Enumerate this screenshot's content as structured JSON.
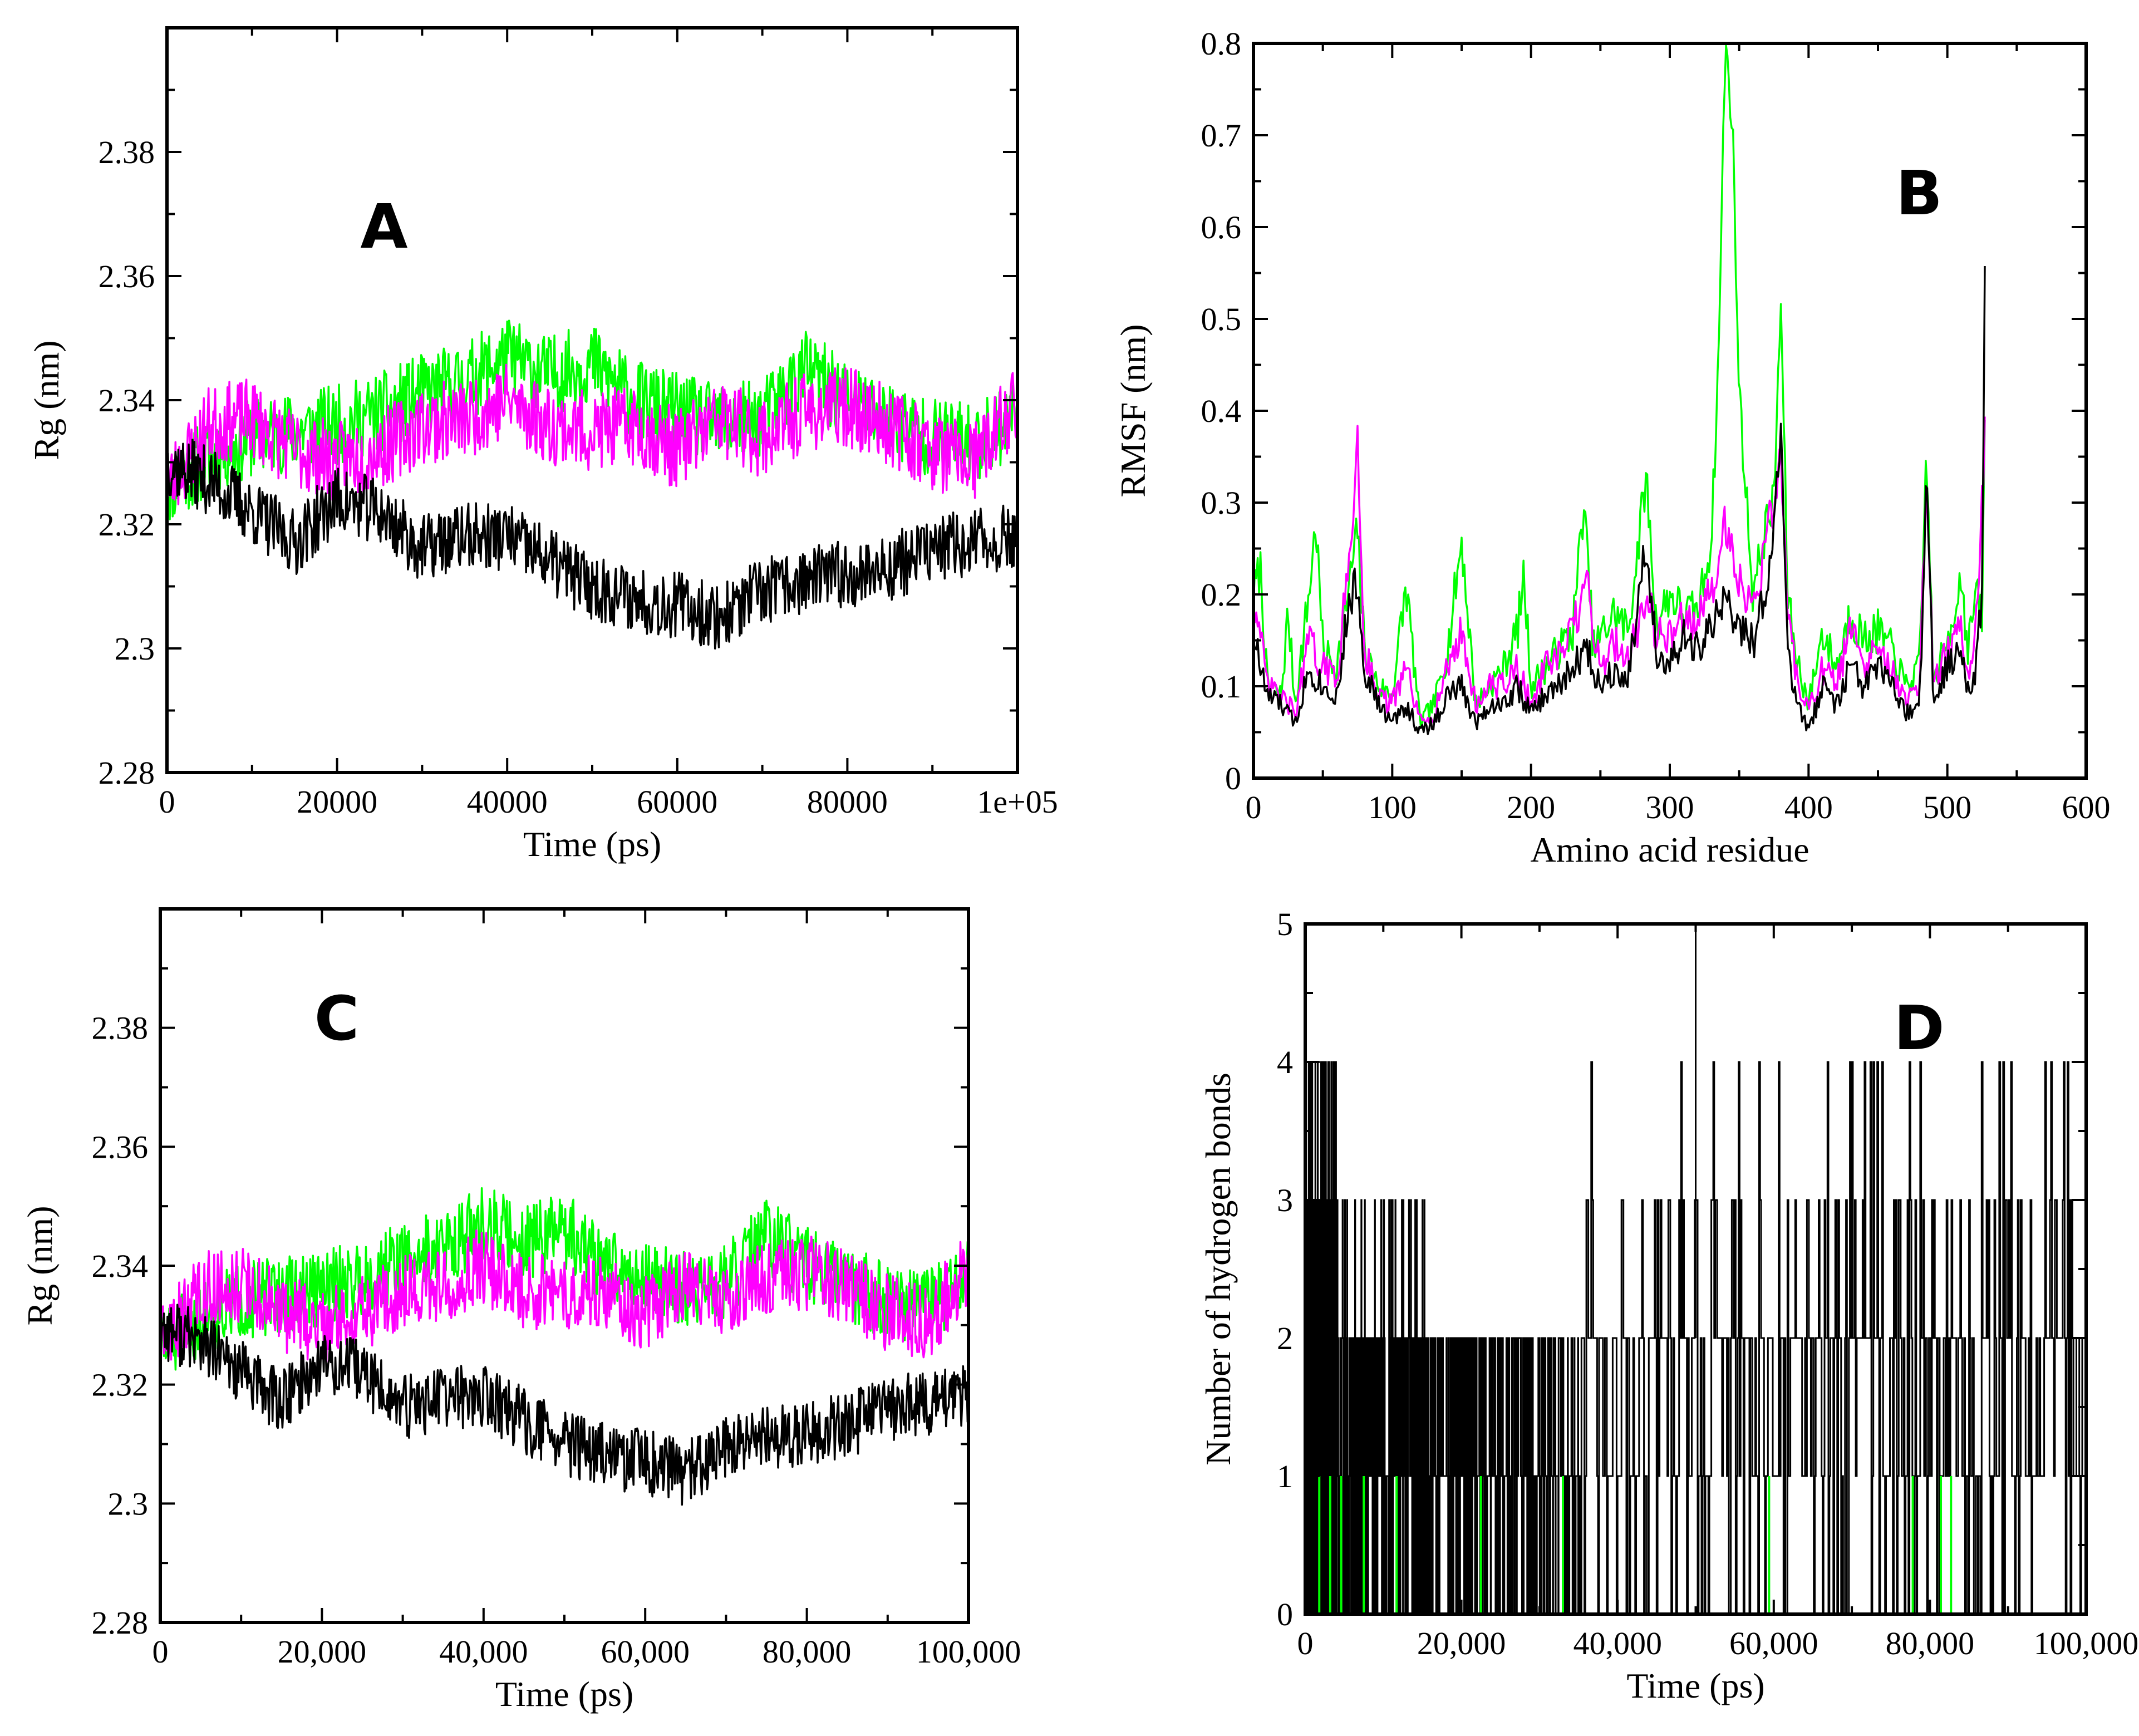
{
  "colors": {
    "black": "#000000",
    "green": "#00ff00",
    "magenta": "#ff00ff"
  },
  "chart_data": [
    {
      "id": "A",
      "type": "line",
      "panel_label": "A",
      "xlabel": "Time (ps)",
      "ylabel": "Rg (nm)",
      "xlim": [
        0,
        100000
      ],
      "ylim": [
        2.28,
        2.4
      ],
      "xticks": [
        0,
        20000,
        40000,
        60000,
        80000,
        100000
      ],
      "xtick_labels": [
        "0",
        "20000",
        "40000",
        "60000",
        "80000",
        "1e+05"
      ],
      "yticks": [
        2.28,
        2.3,
        2.32,
        2.34,
        2.36,
        2.38
      ],
      "ytick_labels": [
        "2.28",
        "2.3",
        "2.32",
        "2.34",
        "2.36",
        "2.38"
      ],
      "series": [
        {
          "name": "green",
          "color": "#00ff00",
          "noise": 0.0065,
          "seed": 11,
          "x": [
            0,
            5000,
            10000,
            15000,
            20000,
            25000,
            30000,
            35000,
            40000,
            45000,
            50000,
            55000,
            60000,
            65000,
            70000,
            75000,
            80000,
            85000,
            90000,
            95000,
            100000
          ],
          "y": [
            2.326,
            2.331,
            2.334,
            2.335,
            2.336,
            2.338,
            2.341,
            2.343,
            2.347,
            2.344,
            2.346,
            2.34,
            2.338,
            2.336,
            2.337,
            2.345,
            2.34,
            2.337,
            2.334,
            2.333,
            2.338
          ]
        },
        {
          "name": "magenta",
          "color": "#ff00ff",
          "noise": 0.0065,
          "seed": 23,
          "x": [
            0,
            5000,
            10000,
            15000,
            20000,
            25000,
            30000,
            35000,
            40000,
            45000,
            50000,
            55000,
            60000,
            65000,
            70000,
            75000,
            80000,
            85000,
            90000,
            95000,
            100000
          ],
          "y": [
            2.326,
            2.336,
            2.337,
            2.332,
            2.33,
            2.332,
            2.336,
            2.337,
            2.34,
            2.336,
            2.335,
            2.336,
            2.332,
            2.337,
            2.334,
            2.338,
            2.339,
            2.336,
            2.332,
            2.33,
            2.34
          ]
        },
        {
          "name": "black",
          "color": "#000000",
          "noise": 0.0055,
          "seed": 37,
          "x": [
            0,
            5000,
            10000,
            15000,
            20000,
            25000,
            30000,
            35000,
            40000,
            45000,
            50000,
            55000,
            60000,
            65000,
            70000,
            75000,
            80000,
            85000,
            90000,
            95000,
            100000
          ],
          "y": [
            2.33,
            2.327,
            2.322,
            2.317,
            2.324,
            2.322,
            2.316,
            2.318,
            2.318,
            2.314,
            2.31,
            2.308,
            2.307,
            2.305,
            2.309,
            2.311,
            2.312,
            2.313,
            2.316,
            2.317,
            2.318
          ]
        }
      ]
    },
    {
      "id": "B",
      "type": "line",
      "panel_label": "B",
      "xlabel": "Amino acid residue",
      "ylabel": "RMSF (nm)",
      "xlim": [
        0,
        600
      ],
      "ylim": [
        0,
        0.8
      ],
      "xticks": [
        0,
        100,
        200,
        300,
        400,
        500,
        600
      ],
      "xtick_labels": [
        "0",
        "100",
        "200",
        "300",
        "400",
        "500",
        "600"
      ],
      "yticks": [
        0,
        0.1,
        0.2,
        0.3,
        0.4,
        0.5,
        0.6,
        0.7,
        0.8
      ],
      "ytick_labels": [
        "0",
        "0.1",
        "0.2",
        "0.3",
        "0.4",
        "0.5",
        "0.6",
        "0.7",
        "0.8"
      ],
      "series": [
        {
          "name": "green",
          "color": "#00ff00",
          "x": [
            0,
            5,
            10,
            20,
            25,
            30,
            40,
            45,
            50,
            60,
            70,
            75,
            80,
            90,
            100,
            110,
            120,
            130,
            140,
            150,
            160,
            170,
            180,
            190,
            195,
            200,
            210,
            220,
            230,
            238,
            245,
            260,
            270,
            283,
            290,
            300,
            310,
            320,
            330,
            335,
            340,
            345,
            350,
            360,
            370,
            375,
            380,
            385,
            390,
            400,
            410,
            420,
            430,
            440,
            450,
            460,
            470,
            480,
            485,
            490,
            500,
            510,
            515,
            520,
            525,
            527
          ],
          "y": [
            0.2,
            0.23,
            0.1,
            0.09,
            0.18,
            0.08,
            0.2,
            0.28,
            0.14,
            0.12,
            0.22,
            0.27,
            0.14,
            0.1,
            0.09,
            0.21,
            0.06,
            0.08,
            0.14,
            0.26,
            0.08,
            0.1,
            0.12,
            0.16,
            0.22,
            0.1,
            0.12,
            0.14,
            0.16,
            0.3,
            0.14,
            0.18,
            0.16,
            0.33,
            0.17,
            0.2,
            0.18,
            0.18,
            0.26,
            0.45,
            0.8,
            0.72,
            0.42,
            0.2,
            0.28,
            0.3,
            0.52,
            0.2,
            0.14,
            0.08,
            0.16,
            0.12,
            0.18,
            0.15,
            0.16,
            0.14,
            0.1,
            0.12,
            0.36,
            0.1,
            0.15,
            0.22,
            0.14,
            0.2,
            0.18,
            0.38
          ]
        },
        {
          "name": "magenta",
          "color": "#ff00ff",
          "x": [
            0,
            5,
            10,
            20,
            30,
            40,
            50,
            60,
            70,
            75,
            80,
            90,
            100,
            110,
            120,
            130,
            140,
            150,
            160,
            170,
            180,
            190,
            200,
            210,
            220,
            230,
            240,
            250,
            260,
            270,
            283,
            290,
            300,
            310,
            320,
            330,
            340,
            350,
            360,
            370,
            380,
            385,
            390,
            400,
            410,
            420,
            430,
            440,
            450,
            460,
            470,
            480,
            485,
            490,
            500,
            510,
            515,
            520,
            525,
            527
          ],
          "y": [
            0.2,
            0.15,
            0.1,
            0.09,
            0.07,
            0.15,
            0.12,
            0.11,
            0.25,
            0.37,
            0.14,
            0.09,
            0.08,
            0.12,
            0.06,
            0.07,
            0.12,
            0.16,
            0.08,
            0.1,
            0.1,
            0.12,
            0.08,
            0.12,
            0.13,
            0.16,
            0.21,
            0.12,
            0.15,
            0.13,
            0.2,
            0.16,
            0.15,
            0.18,
            0.17,
            0.2,
            0.28,
            0.22,
            0.18,
            0.26,
            0.35,
            0.18,
            0.12,
            0.07,
            0.12,
            0.1,
            0.16,
            0.12,
            0.14,
            0.12,
            0.08,
            0.1,
            0.32,
            0.1,
            0.14,
            0.16,
            0.12,
            0.15,
            0.3,
            0.38
          ]
        },
        {
          "name": "black",
          "color": "#000000",
          "x": [
            0,
            5,
            10,
            20,
            30,
            40,
            50,
            60,
            70,
            75,
            80,
            90,
            100,
            110,
            120,
            130,
            140,
            150,
            160,
            170,
            180,
            190,
            200,
            210,
            220,
            230,
            240,
            250,
            260,
            270,
            283,
            290,
            300,
            310,
            320,
            330,
            340,
            350,
            360,
            370,
            380,
            385,
            390,
            400,
            410,
            420,
            430,
            440,
            450,
            460,
            470,
            480,
            485,
            490,
            500,
            510,
            515,
            520,
            525,
            527
          ],
          "y": [
            0.16,
            0.12,
            0.09,
            0.08,
            0.06,
            0.12,
            0.1,
            0.09,
            0.2,
            0.21,
            0.12,
            0.08,
            0.06,
            0.08,
            0.05,
            0.06,
            0.09,
            0.1,
            0.06,
            0.08,
            0.08,
            0.1,
            0.07,
            0.09,
            0.1,
            0.12,
            0.14,
            0.1,
            0.12,
            0.11,
            0.26,
            0.14,
            0.12,
            0.15,
            0.14,
            0.16,
            0.2,
            0.16,
            0.15,
            0.2,
            0.37,
            0.14,
            0.09,
            0.05,
            0.1,
            0.08,
            0.12,
            0.1,
            0.12,
            0.1,
            0.07,
            0.08,
            0.33,
            0.08,
            0.12,
            0.14,
            0.1,
            0.12,
            0.2,
            0.54
          ]
        }
      ]
    },
    {
      "id": "C",
      "type": "line",
      "panel_label": "C",
      "xlabel": "Time (ps)",
      "ylabel": "Rg (nm)",
      "xlim": [
        0,
        100000
      ],
      "ylim": [
        2.28,
        2.4
      ],
      "xticks": [
        0,
        20000,
        40000,
        60000,
        80000,
        100000
      ],
      "xtick_labels": [
        "0",
        "20,000",
        "40,000",
        "60,000",
        "80,000",
        "100,000"
      ],
      "yticks": [
        2.28,
        2.3,
        2.32,
        2.34,
        2.36,
        2.38
      ],
      "ytick_labels": [
        "2.28",
        "2.3",
        "2.32",
        "2.34",
        "2.36",
        "2.38"
      ],
      "series": [
        {
          "name": "green",
          "color": "#00ff00",
          "noise": 0.0065,
          "seed": 51,
          "x": [
            0,
            5000,
            10000,
            15000,
            20000,
            25000,
            30000,
            35000,
            40000,
            45000,
            50000,
            55000,
            60000,
            65000,
            70000,
            75000,
            80000,
            85000,
            90000,
            95000,
            100000
          ],
          "y": [
            2.326,
            2.331,
            2.334,
            2.335,
            2.336,
            2.338,
            2.341,
            2.343,
            2.347,
            2.344,
            2.346,
            2.34,
            2.338,
            2.336,
            2.337,
            2.345,
            2.34,
            2.337,
            2.334,
            2.333,
            2.338
          ]
        },
        {
          "name": "magenta",
          "color": "#ff00ff",
          "noise": 0.0065,
          "seed": 63,
          "x": [
            0,
            5000,
            10000,
            15000,
            20000,
            25000,
            30000,
            35000,
            40000,
            45000,
            50000,
            55000,
            60000,
            65000,
            70000,
            75000,
            80000,
            85000,
            90000,
            95000,
            100000
          ],
          "y": [
            2.326,
            2.336,
            2.337,
            2.332,
            2.33,
            2.332,
            2.336,
            2.337,
            2.34,
            2.336,
            2.335,
            2.336,
            2.332,
            2.337,
            2.334,
            2.338,
            2.339,
            2.336,
            2.332,
            2.33,
            2.34
          ]
        },
        {
          "name": "black",
          "color": "#000000",
          "noise": 0.0055,
          "seed": 77,
          "x": [
            0,
            5000,
            10000,
            15000,
            20000,
            25000,
            30000,
            35000,
            40000,
            45000,
            50000,
            55000,
            60000,
            65000,
            70000,
            75000,
            80000,
            85000,
            90000,
            95000,
            100000
          ],
          "y": [
            2.33,
            2.327,
            2.322,
            2.317,
            2.324,
            2.322,
            2.316,
            2.318,
            2.318,
            2.314,
            2.31,
            2.308,
            2.307,
            2.305,
            2.309,
            2.311,
            2.312,
            2.313,
            2.316,
            2.317,
            2.318
          ]
        }
      ]
    },
    {
      "id": "D",
      "type": "line",
      "panel_label": "D",
      "xlabel": "Time (ps)",
      "ylabel": "Number of hydrogen bonds",
      "xlim": [
        0,
        100000
      ],
      "ylim": [
        0,
        5
      ],
      "xticks": [
        0,
        20000,
        40000,
        60000,
        80000,
        100000
      ],
      "xtick_labels": [
        "0",
        "20,000",
        "40,000",
        "60,000",
        "80,000",
        "100,000"
      ],
      "yticks": [
        0,
        1,
        2,
        3,
        4,
        5
      ],
      "ytick_labels": [
        "0",
        "1",
        "2",
        "3",
        "4",
        "5"
      ],
      "series": [
        {
          "name": "black",
          "color": "#000000",
          "seed": 91,
          "segments": [
            {
              "x": [
                0,
                4000
              ],
              "levels": [
                0,
                1,
                2,
                3,
                4
              ]
            },
            {
              "x": [
                4000,
                16000
              ],
              "levels": [
                0,
                1,
                2,
                3
              ]
            },
            {
              "x": [
                16000,
                35000
              ],
              "levels": [
                0,
                1,
                2
              ]
            },
            {
              "x": [
                35000,
                100000
              ],
              "levels": [
                0,
                1,
                2,
                3,
                4
              ]
            }
          ],
          "spike": {
            "x": 50000,
            "y": 5
          }
        },
        {
          "name": "green",
          "color": "#00ff00",
          "x": [
            1800,
            3200,
            4600,
            7500,
            11700,
            22500,
            33000,
            59400,
            77800,
            81400,
            82700
          ],
          "y": [
            1,
            1,
            1,
            1,
            1,
            1,
            1,
            1,
            1,
            1,
            1
          ]
        }
      ]
    }
  ]
}
